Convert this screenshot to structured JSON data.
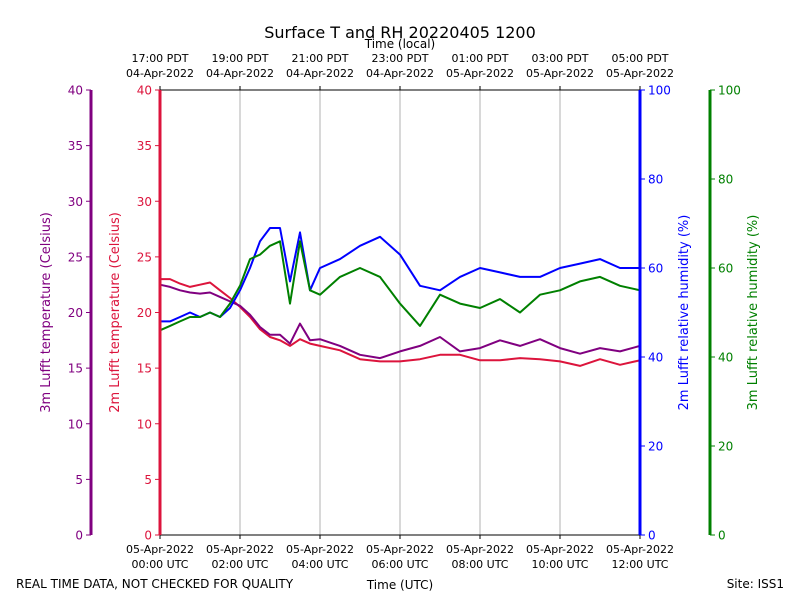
{
  "chart_data": {
    "type": "line",
    "title": "Surface T and RH 20220405 1200",
    "top_axis_label": "Time (local)",
    "xlabel": "Time (UTC)",
    "footer_left": "REAL TIME DATA, NOT CHECKED FOR QUALITY",
    "footer_right": "Site: ISS1",
    "x_ticks_bottom": [
      {
        "line1": "05-Apr-2022",
        "line2": "00:00 UTC"
      },
      {
        "line1": "05-Apr-2022",
        "line2": "02:00 UTC"
      },
      {
        "line1": "05-Apr-2022",
        "line2": "04:00 UTC"
      },
      {
        "line1": "05-Apr-2022",
        "line2": "06:00 UTC"
      },
      {
        "line1": "05-Apr-2022",
        "line2": "08:00 UTC"
      },
      {
        "line1": "05-Apr-2022",
        "line2": "10:00 UTC"
      },
      {
        "line1": "05-Apr-2022",
        "line2": "12:00 UTC"
      }
    ],
    "x_ticks_top": [
      {
        "line1": "17:00 PDT",
        "line2": "04-Apr-2022"
      },
      {
        "line1": "19:00 PDT",
        "line2": "04-Apr-2022"
      },
      {
        "line1": "21:00 PDT",
        "line2": "04-Apr-2022"
      },
      {
        "line1": "23:00 PDT",
        "line2": "04-Apr-2022"
      },
      {
        "line1": "01:00 PDT",
        "line2": "05-Apr-2022"
      },
      {
        "line1": "03:00 PDT",
        "line2": "05-Apr-2022"
      },
      {
        "line1": "05:00 PDT",
        "line2": "05-Apr-2022"
      }
    ],
    "x_hours": [
      0,
      2,
      4,
      6,
      8,
      10,
      12
    ],
    "xlim": [
      0,
      12
    ],
    "axes": {
      "t3m": {
        "label": "3m Lufft temperature (Celsius)",
        "color": "#800080",
        "ylim": [
          0,
          40
        ],
        "ticks": [
          0,
          5,
          10,
          15,
          20,
          25,
          30,
          35,
          40
        ]
      },
      "t2m": {
        "label": "2m Lufft temperature (Celsius)",
        "color": "#dc143c",
        "ylim": [
          0,
          40
        ],
        "ticks": [
          0,
          5,
          10,
          15,
          20,
          25,
          30,
          35,
          40
        ]
      },
      "rh2m": {
        "label": "2m Lufft relative humidity (%)",
        "color": "#0000ff",
        "ylim": [
          0,
          100
        ],
        "ticks": [
          0,
          20,
          40,
          60,
          80,
          100
        ]
      },
      "rh3m": {
        "label": "3m Lufft relative humidity (%)",
        "color": "#008000",
        "ylim": [
          0,
          100
        ],
        "ticks": [
          0,
          20,
          40,
          60,
          80,
          100
        ]
      }
    },
    "series": [
      {
        "key": "t2m",
        "axis": "t2m",
        "color": "#dc143c",
        "x": [
          0,
          0.25,
          0.5,
          0.75,
          1.0,
          1.25,
          1.5,
          1.75,
          2.0,
          2.25,
          2.5,
          2.75,
          3.0,
          3.25,
          3.5,
          3.75,
          4.0,
          4.5,
          5.0,
          5.5,
          6.0,
          6.5,
          7.0,
          7.5,
          8.0,
          8.5,
          9.0,
          9.5,
          10.0,
          10.5,
          11.0,
          11.5,
          12.0
        ],
        "y": [
          23.0,
          23.0,
          22.6,
          22.3,
          22.5,
          22.7,
          22.0,
          21.3,
          20.5,
          19.6,
          18.5,
          17.8,
          17.5,
          17.0,
          17.6,
          17.2,
          17.0,
          16.6,
          15.8,
          15.6,
          15.6,
          15.8,
          16.2,
          16.2,
          15.7,
          15.7,
          15.9,
          15.8,
          15.6,
          15.2,
          15.8,
          15.3,
          15.7
        ]
      },
      {
        "key": "t3m",
        "axis": "t3m",
        "color": "#800080",
        "x": [
          0,
          0.25,
          0.5,
          0.75,
          1.0,
          1.25,
          1.5,
          1.75,
          2.0,
          2.25,
          2.5,
          2.75,
          3.0,
          3.25,
          3.5,
          3.75,
          4.0,
          4.5,
          5.0,
          5.5,
          6.0,
          6.5,
          7.0,
          7.5,
          8.0,
          8.5,
          9.0,
          9.5,
          10.0,
          10.5,
          11.0,
          11.5,
          12.0
        ],
        "y": [
          22.5,
          22.3,
          22.0,
          21.8,
          21.7,
          21.8,
          21.4,
          21.0,
          20.6,
          19.8,
          18.7,
          18.0,
          18.0,
          17.2,
          19.0,
          17.5,
          17.6,
          17.0,
          16.2,
          15.9,
          16.5,
          17.0,
          17.8,
          16.5,
          16.8,
          17.5,
          17.0,
          17.6,
          16.8,
          16.3,
          16.8,
          16.5,
          17.0
        ]
      },
      {
        "key": "rh2m",
        "axis": "rh2m",
        "color": "#0000ff",
        "x": [
          0,
          0.25,
          0.5,
          0.75,
          1.0,
          1.25,
          1.5,
          1.75,
          2.0,
          2.25,
          2.5,
          2.75,
          3.0,
          3.25,
          3.5,
          3.75,
          4.0,
          4.5,
          5.0,
          5.5,
          6.0,
          6.5,
          7.0,
          7.5,
          8.0,
          8.5,
          9.0,
          9.5,
          10.0,
          10.5,
          11.0,
          11.5,
          12.0
        ],
        "y": [
          48,
          48,
          49,
          50,
          49,
          50,
          49,
          51,
          55,
          60,
          66,
          69,
          69,
          57,
          68,
          55,
          60,
          62,
          65,
          67,
          63,
          56,
          55,
          58,
          60,
          59,
          58,
          58,
          60,
          61,
          62,
          60,
          60
        ]
      },
      {
        "key": "rh3m",
        "axis": "rh3m",
        "color": "#008000",
        "x": [
          0,
          0.25,
          0.5,
          0.75,
          1.0,
          1.25,
          1.5,
          1.75,
          2.0,
          2.25,
          2.5,
          2.75,
          3.0,
          3.25,
          3.5,
          3.75,
          4.0,
          4.5,
          5.0,
          5.5,
          6.0,
          6.5,
          7.0,
          7.5,
          8.0,
          8.5,
          9.0,
          9.5,
          10.0,
          10.5,
          11.0,
          11.5,
          12.0
        ],
        "y": [
          46,
          47,
          48,
          49,
          49,
          50,
          49,
          52,
          56,
          62,
          63,
          65,
          66,
          52,
          66,
          55,
          54,
          58,
          60,
          58,
          52,
          47,
          54,
          52,
          51,
          53,
          50,
          54,
          55,
          57,
          58,
          56,
          55
        ]
      }
    ]
  }
}
